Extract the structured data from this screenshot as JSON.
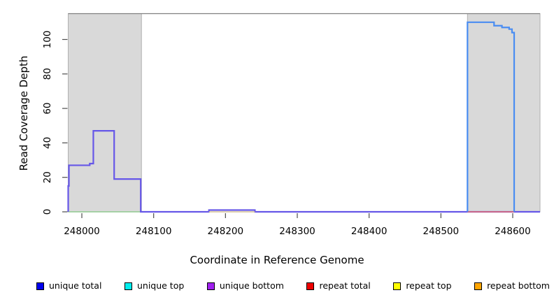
{
  "chart_data": {
    "type": "line",
    "title": "",
    "xlabel": "Coordinate in Reference Genome",
    "ylabel": "Read Coverage Depth",
    "xlim": [
      247981,
      248638
    ],
    "ylim": [
      0,
      115
    ],
    "x_ticks": [
      248000,
      248100,
      248200,
      248300,
      248400,
      248500,
      248600
    ],
    "y_ticks": [
      0,
      20,
      40,
      60,
      80,
      100
    ],
    "grid": false,
    "top_border_color": "#7f7f7f",
    "tick_color": "#4d4d4d",
    "shaded_regions": [
      {
        "name": "left-repeat-region",
        "x0": 247981,
        "x1": 248083,
        "fill": "#d9d9d9",
        "border": "#b0b0b0"
      },
      {
        "name": "right-repeat-region",
        "x0": 248537,
        "x1": 248638,
        "fill": "#d9d9d9",
        "border": "#b0b0b0"
      }
    ],
    "series": [
      {
        "name": "unique-top-zero-line",
        "color": "#8fc98f",
        "width": 1.6,
        "points": [
          [
            247981,
            0
          ],
          [
            248083,
            0
          ]
        ]
      },
      {
        "name": "unique-coverage-steps",
        "color": "#6657e8",
        "width": 2.2,
        "points": [
          [
            247981,
            0
          ],
          [
            247981,
            15
          ],
          [
            247982,
            15
          ],
          [
            247982,
            27
          ],
          [
            248011,
            27
          ],
          [
            248011,
            28
          ],
          [
            248016,
            28
          ],
          [
            248016,
            47
          ],
          [
            248045,
            47
          ],
          [
            248045,
            19
          ],
          [
            248082,
            19
          ],
          [
            248082,
            0
          ],
          [
            248177,
            0
          ],
          [
            248177,
            1
          ],
          [
            248241,
            1
          ],
          [
            248241,
            0
          ],
          [
            248638,
            0
          ]
        ]
      },
      {
        "name": "repeat-top-zero-line",
        "color": "#d2bf92",
        "width": 1.6,
        "points": [
          [
            248177,
            0
          ],
          [
            248241,
            0
          ]
        ]
      },
      {
        "name": "repeat-total-zero-line",
        "color": "#e96b6b",
        "width": 1.6,
        "points": [
          [
            248537,
            0
          ],
          [
            248602,
            0
          ]
        ]
      },
      {
        "name": "unique-total-spike",
        "color": "#4a8df2",
        "width": 2.2,
        "points": [
          [
            248537,
            0
          ],
          [
            248537,
            110
          ],
          [
            248574,
            110
          ],
          [
            248574,
            108
          ],
          [
            248585,
            108
          ],
          [
            248585,
            107
          ],
          [
            248595,
            107
          ],
          [
            248595,
            106
          ],
          [
            248599,
            106
          ],
          [
            248599,
            104
          ],
          [
            248602,
            104
          ],
          [
            248602,
            0
          ]
        ]
      }
    ],
    "legend_position": "bottom",
    "legend": [
      {
        "label": "unique total",
        "color": "#0000ee"
      },
      {
        "label": "unique top",
        "color": "#00eeee"
      },
      {
        "label": "unique bottom",
        "color": "#a020f0"
      },
      {
        "label": "repeat total",
        "color": "#ee0000"
      },
      {
        "label": "repeat top",
        "color": "#ffff00"
      },
      {
        "label": "repeat bottom",
        "color": "#ffa500"
      }
    ]
  }
}
